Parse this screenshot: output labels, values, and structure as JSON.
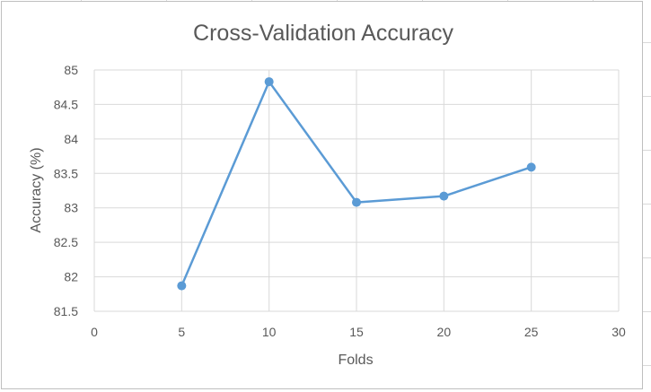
{
  "chart_data": {
    "type": "scatter",
    "title": "Cross-Validation Accuracy",
    "xlabel": "Folds",
    "ylabel": "Accuracy (%)",
    "xlim": [
      0,
      30
    ],
    "ylim": [
      81.5,
      85
    ],
    "x_ticks": [
      "0",
      "5",
      "10",
      "15",
      "20",
      "25",
      "30"
    ],
    "y_ticks": [
      "81.5",
      "82",
      "82.5",
      "83",
      "83.5",
      "84",
      "84.5",
      "85"
    ],
    "grid": true,
    "legend": "none",
    "line_color": "#5b9bd5",
    "series": [
      {
        "x": [
          5,
          10,
          15,
          20,
          25
        ],
        "y": [
          81.87,
          84.83,
          83.08,
          83.17,
          83.59
        ]
      }
    ]
  }
}
